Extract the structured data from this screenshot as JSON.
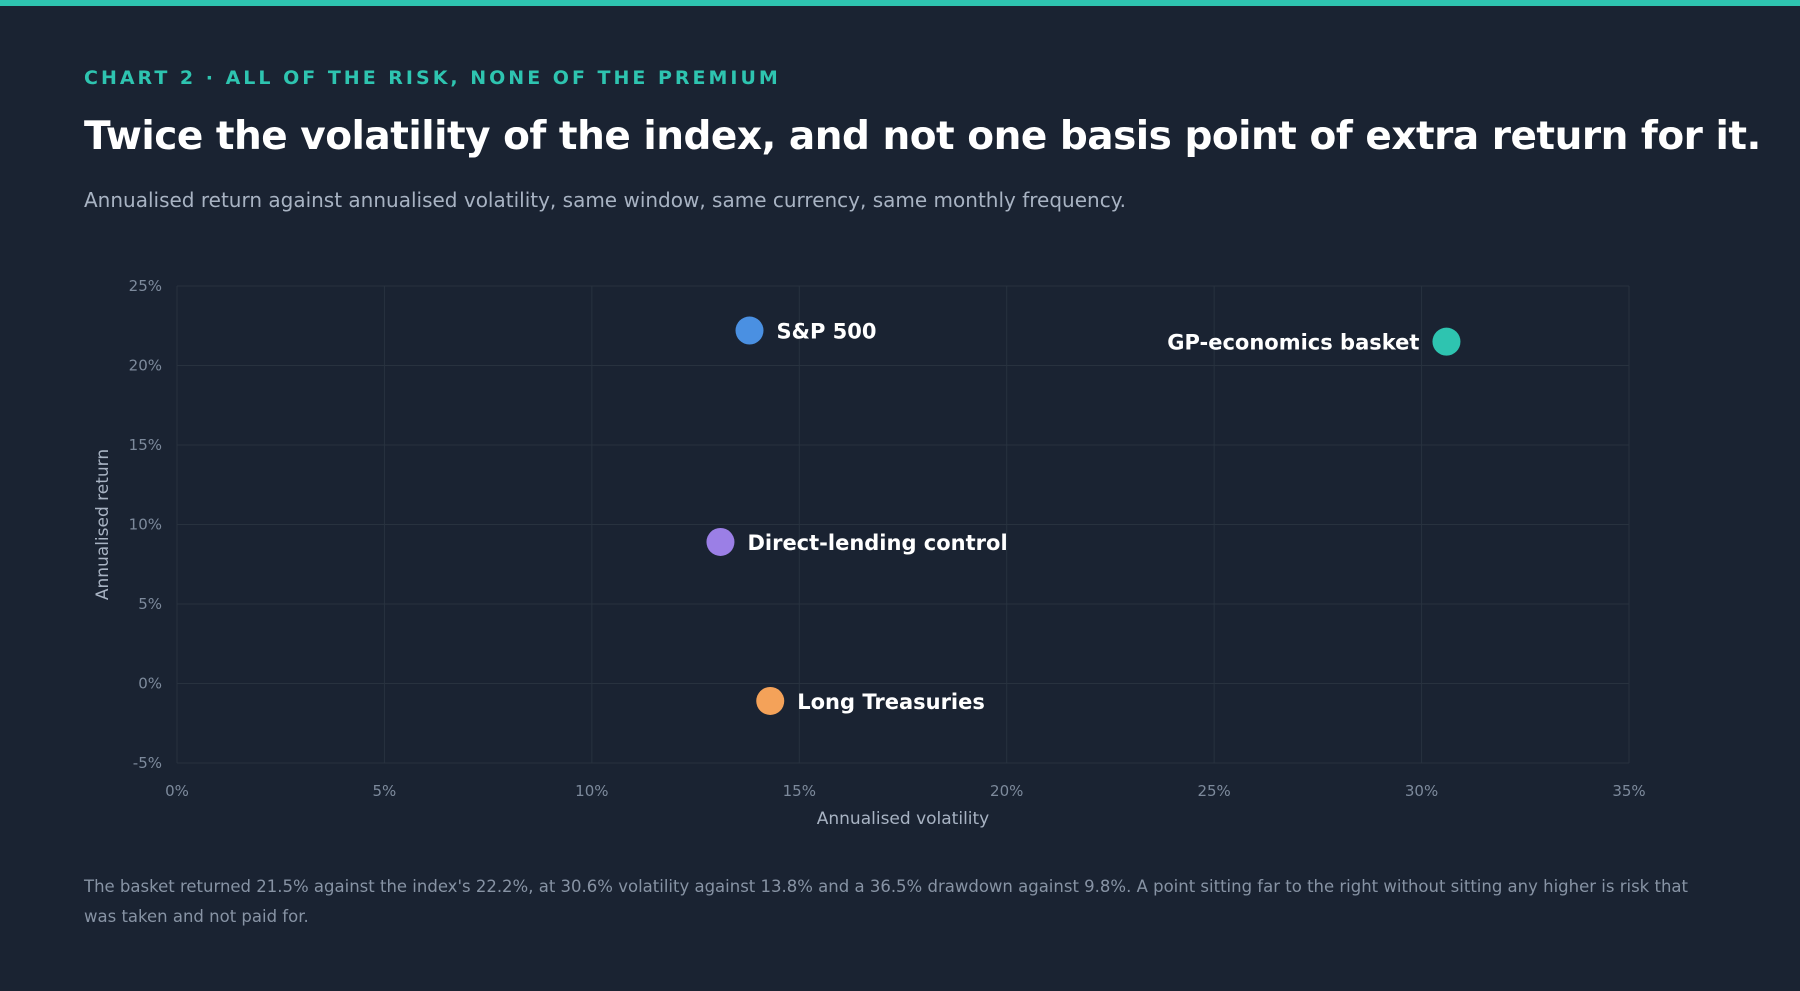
{
  "eyebrow": "CHART 2 · ALL OF THE RISK, NONE OF THE PREMIUM",
  "headline": "Twice the volatility of the index, and not one basis point of extra return for it.",
  "subtitle": "Annualised return against annualised volatility, same window, same currency, same monthly frequency.",
  "footnote": "The basket returned 21.5% against the index's 22.2%, at 30.6% volatility against 13.8% and a 36.5% drawdown against 9.8%. A point sitting far to the right without sitting any higher is risk that was taken and not paid for.",
  "colors": {
    "accent": "#2ec4b0",
    "background": "#1a2332"
  },
  "chart_data": {
    "type": "scatter",
    "xlabel": "Annualised volatility",
    "ylabel": "Annualised return",
    "xlim": [
      0,
      35
    ],
    "ylim": [
      -5,
      25
    ],
    "x_ticks": [
      0,
      5,
      10,
      15,
      20,
      25,
      30,
      35
    ],
    "y_ticks": [
      -5,
      0,
      5,
      10,
      15,
      20,
      25
    ],
    "x_tick_labels": [
      "0%",
      "5%",
      "10%",
      "15%",
      "20%",
      "25%",
      "30%",
      "35%"
    ],
    "y_tick_labels": [
      "-5%",
      "0%",
      "5%",
      "10%",
      "15%",
      "20%",
      "25%"
    ],
    "grid": true,
    "series": [
      {
        "name": "S&P 500",
        "x": 13.8,
        "y": 22.2,
        "color": "#4a90e2",
        "label_side": "right"
      },
      {
        "name": "GP-economics basket",
        "x": 30.6,
        "y": 21.5,
        "color": "#2ec4b0",
        "label_side": "left"
      },
      {
        "name": "Direct-lending control",
        "x": 13.1,
        "y": 8.9,
        "color": "#9b7fe6",
        "label_side": "right"
      },
      {
        "name": "Long Treasuries",
        "x": 14.3,
        "y": -1.1,
        "color": "#f4a259",
        "label_side": "right"
      }
    ]
  }
}
